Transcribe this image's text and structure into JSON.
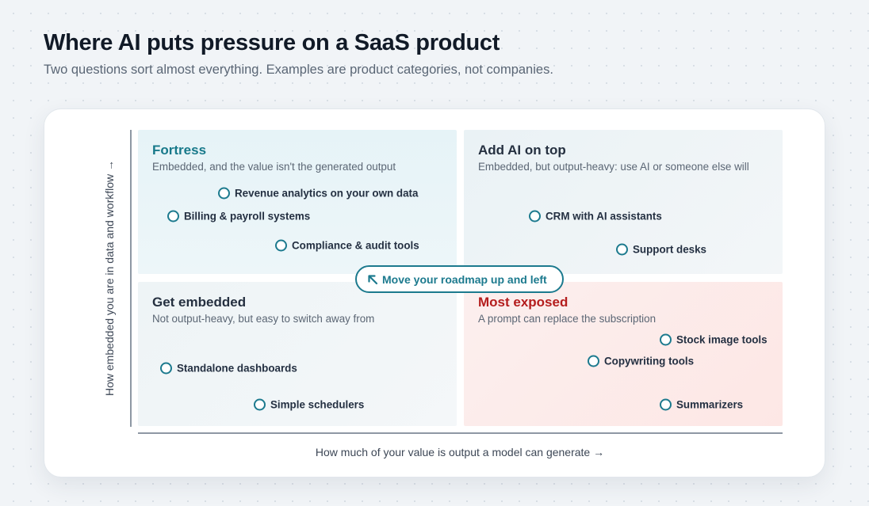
{
  "header": {
    "title": "Where AI puts pressure on a SaaS product",
    "subtitle": "Two questions sort almost everything. Examples are product categories, not companies."
  },
  "axes": {
    "y_label": "How embedded you are in data and workflow →",
    "x_label": "How much of your value is output a model can generate →"
  },
  "quadrants": {
    "fortress": {
      "title": "Fortress",
      "subtitle": "Embedded, and the value isn't the generated output",
      "items": [
        "Revenue analytics on your own data",
        "Billing & payroll systems",
        "Compliance & audit tools"
      ]
    },
    "add_ai": {
      "title": "Add AI on top",
      "subtitle": "Embedded, but output-heavy: use AI or someone else will",
      "items": [
        "CRM with AI assistants",
        "Support desks"
      ]
    },
    "get_embedded": {
      "title": "Get embedded",
      "subtitle": "Not output-heavy, but easy to switch away from",
      "items": [
        "Standalone dashboards",
        "Simple schedulers"
      ]
    },
    "most_exposed": {
      "title": "Most exposed",
      "subtitle": "A prompt can replace the subscription",
      "items": [
        "Stock image tools",
        "Copywriting tools",
        "Summarizers"
      ]
    }
  },
  "callout": {
    "label": "Move your roadmap up and left",
    "icon": "arrow-up-left-icon"
  },
  "colors": {
    "accent": "#1c7a8e",
    "danger": "#b41d1d",
    "title": "#111a27"
  }
}
